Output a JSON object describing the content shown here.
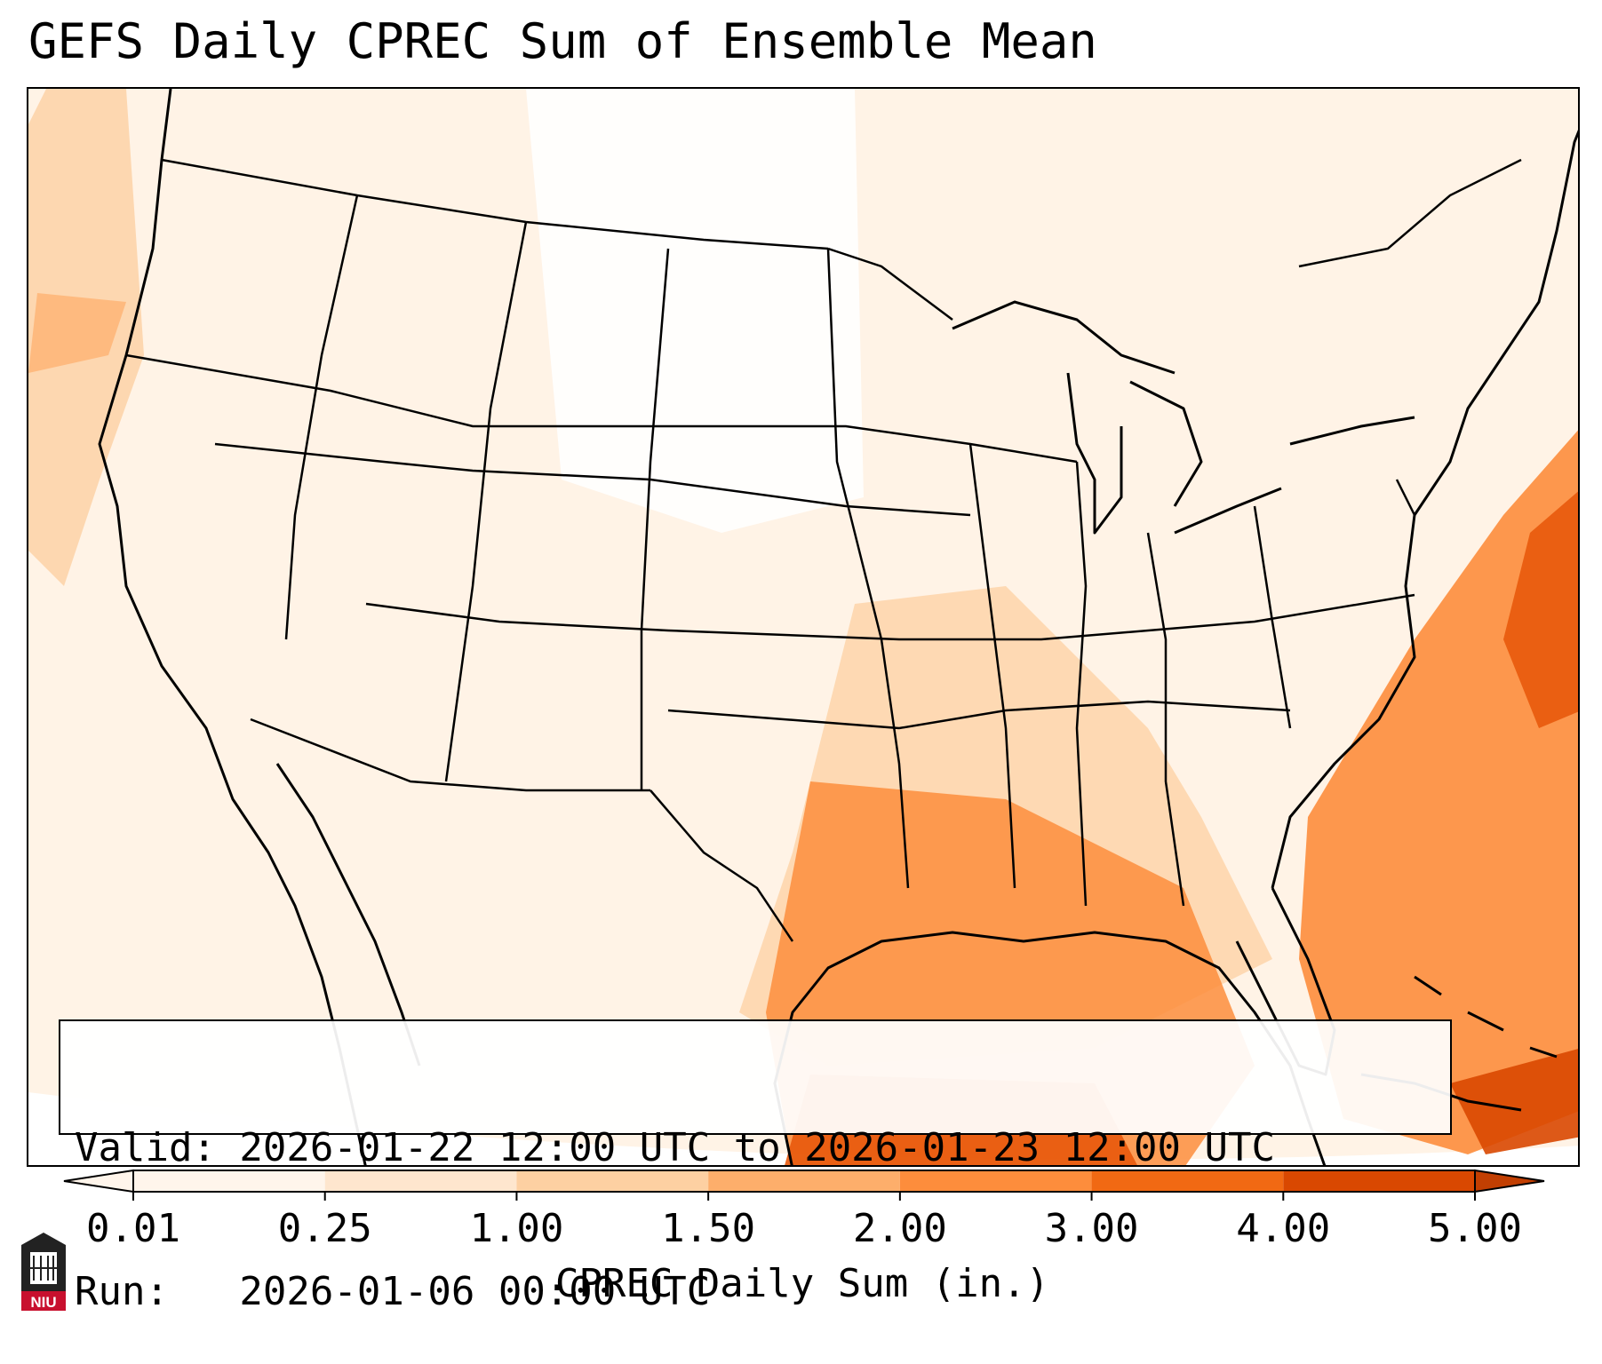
{
  "title": "GEFS Daily CPREC Sum of Ensemble Mean",
  "info": {
    "valid": "Valid: 2026-01-22 12:00 UTC to 2026-01-23 12:00 UTC",
    "run": "Run:   2026-01-06 00:00 UTC"
  },
  "colorbar": {
    "label": "CPREC Daily Sum (in.)",
    "ticks": [
      "0.01",
      "0.25",
      "1.00",
      "1.50",
      "2.00",
      "3.00",
      "4.00",
      "5.00"
    ],
    "colors": [
      "#fff5eb",
      "#fee6ce",
      "#fdd0a2",
      "#fdae6b",
      "#fd8d3c",
      "#f16913",
      "#d94801"
    ],
    "extend": "both"
  },
  "logo": {
    "text": "NIU",
    "color": "#c8102e"
  }
}
